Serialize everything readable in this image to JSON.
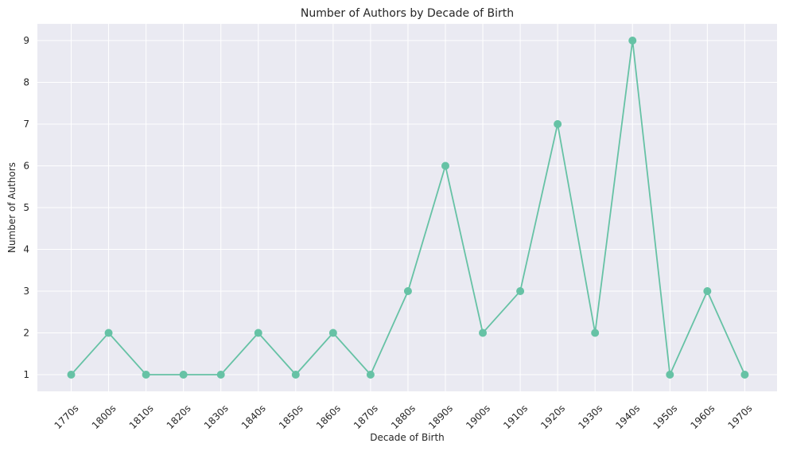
{
  "chart_data": {
    "type": "line",
    "title": "Number of Authors by Decade of Birth",
    "xlabel": "Decade of Birth",
    "ylabel": "Number of Authors",
    "categories": [
      "1770s",
      "1800s",
      "1810s",
      "1820s",
      "1830s",
      "1840s",
      "1850s",
      "1860s",
      "1870s",
      "1880s",
      "1890s",
      "1900s",
      "1910s",
      "1920s",
      "1930s",
      "1940s",
      "1950s",
      "1960s",
      "1970s"
    ],
    "values": [
      1,
      2,
      1,
      1,
      1,
      2,
      1,
      2,
      1,
      3,
      6,
      2,
      3,
      7,
      2,
      9,
      1,
      3,
      1
    ],
    "yticks": [
      1,
      2,
      3,
      4,
      5,
      6,
      7,
      8,
      9
    ],
    "ylim": [
      0.6,
      9.4
    ],
    "grid": true,
    "line_color": "#66c2a5",
    "plot_background": "#eaeaf2",
    "grid_color": "#ffffff"
  }
}
